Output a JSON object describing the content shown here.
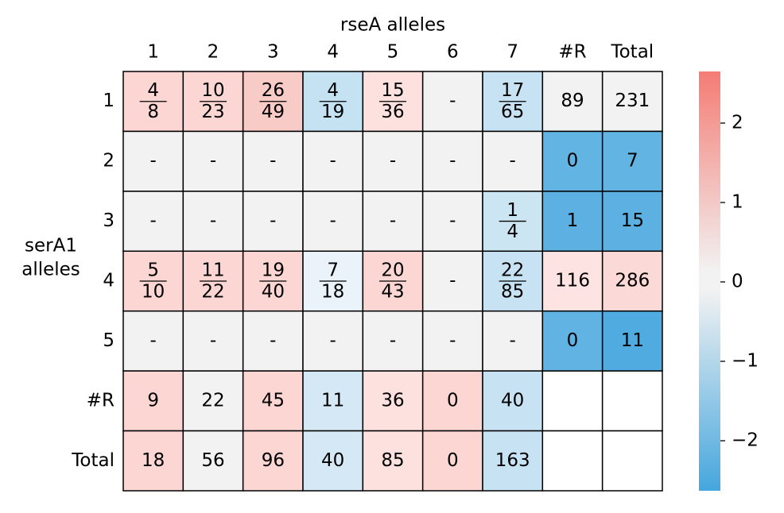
{
  "title": "rseA alleles",
  "row_axis_label": [
    "serA1",
    "alleles"
  ],
  "columns": [
    "1",
    "2",
    "3",
    "4",
    "5",
    "6",
    "7",
    "#R",
    "Total"
  ],
  "rows": [
    "1",
    "2",
    "3",
    "4",
    "5",
    "#R",
    "Total"
  ],
  "cells": [
    [
      {
        "num": "4",
        "den": "8"
      },
      {
        "num": "10",
        "den": "23"
      },
      {
        "num": "26",
        "den": "49"
      },
      {
        "num": "4",
        "den": "19"
      },
      {
        "num": "15",
        "den": "36"
      },
      "-",
      {
        "num": "17",
        "den": "65"
      },
      "89",
      "231"
    ],
    [
      "-",
      "-",
      "-",
      "-",
      "-",
      "-",
      "-",
      "0",
      "7"
    ],
    [
      "-",
      "-",
      "-",
      "-",
      "-",
      "-",
      {
        "num": "1",
        "den": "4"
      },
      "1",
      "15"
    ],
    [
      {
        "num": "5",
        "den": "10"
      },
      {
        "num": "11",
        "den": "22"
      },
      {
        "num": "19",
        "den": "40"
      },
      {
        "num": "7",
        "den": "18"
      },
      {
        "num": "20",
        "den": "43"
      },
      "-",
      {
        "num": "22",
        "den": "85"
      },
      "116",
      "286"
    ],
    [
      "-",
      "-",
      "-",
      "-",
      "-",
      "-",
      "-",
      "0",
      "11"
    ],
    [
      "9",
      "22",
      "45",
      "11",
      "36",
      "0",
      "40",
      null,
      null
    ],
    [
      "18",
      "56",
      "96",
      "40",
      "85",
      "0",
      "163",
      null,
      null
    ]
  ],
  "cell_colors": [
    [
      "#fbd6d3",
      "#fbd6d3",
      "#f9cbc7",
      "#c5e2f2",
      "#fce1df",
      "#f2f2f2",
      "#c7e3f3",
      "#f2f2f2",
      "#f2f2f2"
    ],
    [
      "#f2f2f2",
      "#f2f2f2",
      "#f2f2f2",
      "#f2f2f2",
      "#f2f2f2",
      "#f2f2f2",
      "#f2f2f2",
      "#62b4e3",
      "#62b4e3"
    ],
    [
      "#f2f2f2",
      "#f2f2f2",
      "#f2f2f2",
      "#f2f2f2",
      "#f2f2f2",
      "#f2f2f2",
      "#cbe5f3",
      "#5cb1e2",
      "#5cb1e2"
    ],
    [
      "#fbd6d3",
      "#fbd6d3",
      "#fbd6d3",
      "#eaf3f9",
      "#fbd6d3",
      "#f2f2f2",
      "#c7e3f3",
      "#fde4e2",
      "#fbd9d6"
    ],
    [
      "#f2f2f2",
      "#f2f2f2",
      "#f2f2f2",
      "#f2f2f2",
      "#f2f2f2",
      "#f2f2f2",
      "#f2f2f2",
      "#60b3e3",
      "#4fabe0"
    ],
    [
      "#fbd6d3",
      "#f2f2f2",
      "#fbd6d3",
      "#d4e9f5",
      "#fce1df",
      "#fbd6d3",
      "#c7e3f3",
      "#ffffff",
      "#ffffff"
    ],
    [
      "#fbd6d3",
      "#f2f2f2",
      "#fbd6d3",
      "#d4e9f5",
      "#fce1df",
      "#fbd6d3",
      "#c7e3f3",
      "#ffffff",
      "#ffffff"
    ]
  ],
  "colorbar": {
    "ylim": [
      -2.63,
      2.65
    ],
    "yticks": [
      {
        "value": -2,
        "label": "−2"
      },
      {
        "value": -1,
        "label": "−1"
      },
      0,
      1,
      2
    ],
    "colors": [
      "#45a6dd",
      "#f2f2f2",
      "#f47c74"
    ]
  }
}
